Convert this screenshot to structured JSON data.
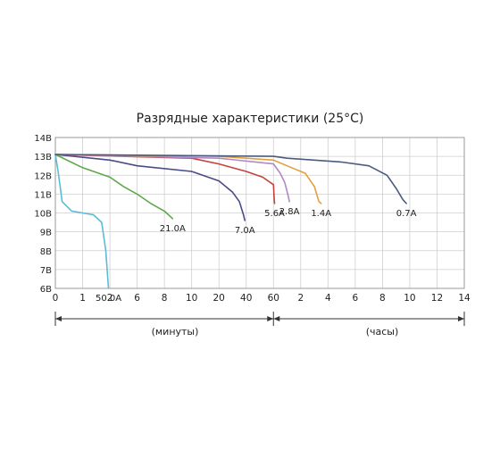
{
  "chart_data": {
    "type": "line",
    "title": "Разрядные характеристики (25°C)",
    "y_axis": {
      "ticks": [
        "6В",
        "7В",
        "8В",
        "9В",
        "10В",
        "11В",
        "12В",
        "13В",
        "14В"
      ],
      "min": 6,
      "max": 14,
      "unit": "В"
    },
    "x_axis": {
      "minutes_ticks": [
        "0",
        "1",
        "2",
        "6",
        "8",
        "10",
        "20",
        "40",
        "60"
      ],
      "hours_ticks": [
        "2",
        "4",
        "6",
        "8",
        "10",
        "12",
        "14"
      ],
      "minutes_label": "(минуты)",
      "hours_label": "(часы)"
    },
    "grid": true,
    "series": [
      {
        "name": "50.0A",
        "color": "#5bbcd6",
        "points": [
          [
            0,
            13.1
          ],
          [
            0.1,
            12.2
          ],
          [
            0.25,
            10.6
          ],
          [
            0.6,
            10.1
          ],
          [
            1,
            10.0
          ],
          [
            1.4,
            9.9
          ],
          [
            1.7,
            9.5
          ],
          [
            1.85,
            8.0
          ],
          [
            1.95,
            6.0
          ]
        ]
      },
      {
        "name": "21.0A",
        "color": "#5fa84a",
        "points": [
          [
            0,
            13.1
          ],
          [
            1,
            12.4
          ],
          [
            2,
            11.9
          ],
          [
            4,
            11.4
          ],
          [
            6,
            11.0
          ],
          [
            7,
            10.5
          ],
          [
            8,
            10.1
          ],
          [
            8.6,
            9.7
          ]
        ]
      },
      {
        "name": "7.0A",
        "color": "#4a4a84",
        "points": [
          [
            0,
            13.1
          ],
          [
            2,
            12.8
          ],
          [
            6,
            12.5
          ],
          [
            10,
            12.2
          ],
          [
            20,
            11.7
          ],
          [
            30,
            11.1
          ],
          [
            35,
            10.6
          ],
          [
            38,
            9.9
          ],
          [
            39,
            9.6
          ]
        ]
      },
      {
        "name": "5.6A",
        "color": "#c4433d",
        "points": [
          [
            0,
            13.1
          ],
          [
            10,
            12.9
          ],
          [
            20,
            12.6
          ],
          [
            40,
            12.2
          ],
          [
            52,
            11.9
          ],
          [
            60,
            11.5
          ],
          [
            63,
            10.8
          ],
          [
            65,
            10.5
          ]
        ]
      },
      {
        "name": "2.8A",
        "color": "#b487c4",
        "points": [
          [
            0,
            13.1
          ],
          [
            20,
            12.9
          ],
          [
            60,
            12.6
          ],
          [
            90,
            12.1
          ],
          [
            110,
            11.6
          ],
          [
            125,
            10.9
          ],
          [
            130,
            10.6
          ]
        ]
      },
      {
        "name": "1.4A",
        "color": "#e0a040",
        "points": [
          [
            0,
            13.1
          ],
          [
            20,
            13.0
          ],
          [
            60,
            12.8
          ],
          [
            120,
            12.5
          ],
          [
            200,
            12.1
          ],
          [
            240,
            11.4
          ],
          [
            260,
            10.6
          ],
          [
            270,
            10.5
          ]
        ]
      },
      {
        "name": "0.7A",
        "color": "#4a5a80",
        "points": [
          [
            0,
            13.1
          ],
          [
            60,
            13.0
          ],
          [
            120,
            12.9
          ],
          [
            360,
            12.7
          ],
          [
            480,
            12.5
          ],
          [
            560,
            12.0
          ],
          [
            600,
            11.3
          ],
          [
            630,
            10.7
          ],
          [
            645,
            10.5
          ]
        ]
      }
    ],
    "curve_labels": [
      {
        "text": "50.0A",
        "series": "50.0A"
      },
      {
        "text": "21.0A",
        "series": "21.0A"
      },
      {
        "text": "7.0A",
        "series": "7.0A"
      },
      {
        "text": "5.6A",
        "series": "5.6A"
      },
      {
        "text": "2.8A",
        "series": "2.8A"
      },
      {
        "text": "1.4A",
        "series": "1.4A"
      },
      {
        "text": "0.7A",
        "series": "0.7A"
      }
    ]
  }
}
